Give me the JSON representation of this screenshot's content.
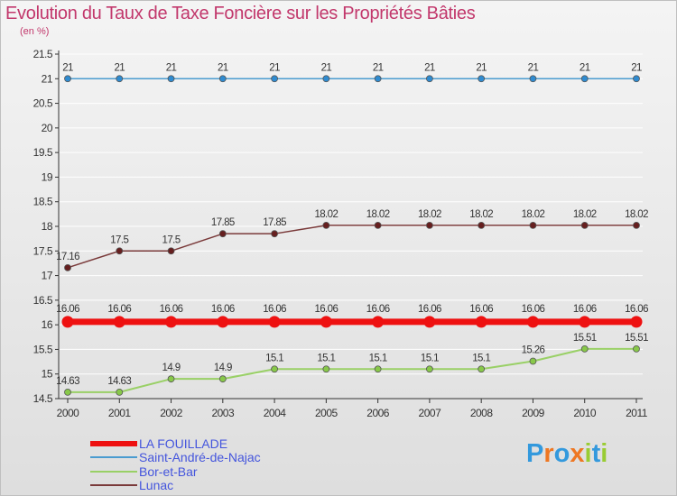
{
  "header": {
    "title": "Evolution du Taux de Taxe Foncière sur les Propriétés Bâties",
    "unit": "(en %)"
  },
  "logo": {
    "text": "Proxiti",
    "letters": [
      "P",
      "r",
      "o",
      "x",
      "i",
      "t",
      "i"
    ],
    "colors": [
      "#3399dd",
      "#ee7722",
      "#3399dd",
      "#ee7722",
      "#99cc33",
      "#3399dd",
      "#99cc33"
    ]
  },
  "colors": {
    "axis": "#333333",
    "grid": "#ffffff",
    "label": "#333333",
    "legend_text": "#4455dd"
  },
  "chart_data": {
    "type": "line",
    "title": "Evolution du Taux de Taxe Foncière sur les Propriétés Bâties",
    "ylabel": "(en %)",
    "xlabel": "",
    "ylim": [
      14.5,
      21.5
    ],
    "yticks": [
      "14.5",
      "15",
      "15.5",
      "16",
      "16.5",
      "17",
      "17.5",
      "18",
      "18.5",
      "19",
      "19.5",
      "20",
      "20.5",
      "21",
      "21.5"
    ],
    "x": [
      "2000",
      "2001",
      "2002",
      "2003",
      "2004",
      "2005",
      "2006",
      "2007",
      "2008",
      "2009",
      "2010",
      "2011"
    ],
    "series": [
      {
        "name": "Saint-André-de-Najac",
        "color": "#4a9cd0",
        "marker": "#2f8bd0",
        "width": 1.5,
        "radius": 3.5,
        "values": [
          21,
          21,
          21,
          21,
          21,
          21,
          21,
          21,
          21,
          21,
          21,
          21
        ],
        "labels": [
          "21",
          "21",
          "21",
          "21",
          "21",
          "21",
          "21",
          "21",
          "21",
          "21",
          "21",
          "21"
        ]
      },
      {
        "name": "Lunac",
        "color": "#7a3a3a",
        "marker": "#661f1f",
        "width": 1.5,
        "radius": 3.5,
        "values": [
          17.16,
          17.5,
          17.5,
          17.85,
          17.85,
          18.02,
          18.02,
          18.02,
          18.02,
          18.02,
          18.02,
          18.02
        ],
        "labels": [
          "17.16",
          "17.5",
          "17.5",
          "17.85",
          "17.85",
          "18.02",
          "18.02",
          "18.02",
          "18.02",
          "18.02",
          "18.02",
          "18.02"
        ]
      },
      {
        "name": "LA FOUILLADE",
        "color": "#ee1111",
        "marker": "#ee1111",
        "width": 7,
        "radius": 6.5,
        "values": [
          16.06,
          16.06,
          16.06,
          16.06,
          16.06,
          16.06,
          16.06,
          16.06,
          16.06,
          16.06,
          16.06,
          16.06
        ],
        "labels": [
          "16.06",
          "16.06",
          "16.06",
          "16.06",
          "16.06",
          "16.06",
          "16.06",
          "16.06",
          "16.06",
          "16.06",
          "16.06",
          "16.06"
        ]
      },
      {
        "name": "Bor-et-Bar",
        "color": "#99d066",
        "marker": "#88c84a",
        "width": 2,
        "radius": 3.5,
        "values": [
          14.63,
          14.63,
          14.9,
          14.9,
          15.1,
          15.1,
          15.1,
          15.1,
          15.1,
          15.26,
          15.51,
          15.51
        ],
        "labels": [
          "14.63",
          "14.63",
          "14.9",
          "14.9",
          "15.1",
          "15.1",
          "15.1",
          "15.1",
          "15.1",
          "15.26",
          "15.51",
          "15.51"
        ]
      }
    ],
    "legend": [
      {
        "name": "LA FOUILLADE",
        "color": "#ee1111",
        "thickness": 6
      },
      {
        "name": "Saint-André-de-Najac",
        "color": "#4a9cd0",
        "thickness": 2
      },
      {
        "name": "Bor-et-Bar",
        "color": "#99d066",
        "thickness": 2
      },
      {
        "name": "Lunac",
        "color": "#7a3a3a",
        "thickness": 2
      }
    ],
    "legend_position": "bottom-left"
  }
}
